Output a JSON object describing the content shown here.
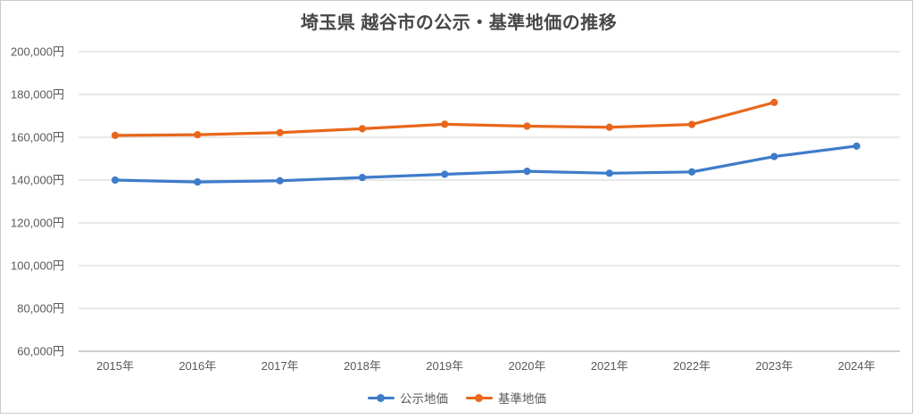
{
  "window": {
    "background": "#ffffff",
    "border_color": "#cbcbcb"
  },
  "chart": {
    "title": "埼玉県 越谷市の公示・基準地価の推移"
  },
  "chart_data": {
    "type": "line",
    "categories": [
      "2015年",
      "2016年",
      "2017年",
      "2018年",
      "2019年",
      "2020年",
      "2021年",
      "2022年",
      "2023年",
      "2024年"
    ],
    "series": [
      {
        "name": "公示地価",
        "color": "#3E7CC9",
        "values": [
          140000,
          139100,
          139700,
          141200,
          142700,
          144100,
          143200,
          143800,
          151000,
          155900
        ]
      },
      {
        "name": "基準地価",
        "color": "#E8671B",
        "values": [
          160900,
          161200,
          162200,
          164000,
          166100,
          165200,
          164700,
          166000,
          176300,
          null
        ]
      }
    ],
    "title": "埼玉県 越谷市の公示・基準地価の推移",
    "xlabel": "",
    "ylabel": "",
    "ylim": [
      60000,
      200000
    ],
    "y_tick_step": 20000,
    "y_tick_unit": "円",
    "y_tick_labels": [
      "60,000円",
      "80,000円",
      "100,000円",
      "120,000円",
      "140,000円",
      "160,000円",
      "180,000円",
      "200,000円"
    ],
    "grid": true,
    "gridline_color": "#d9d9d9",
    "axis_line_color": "#bdbdbd",
    "tick_label_color": "#595959",
    "legend_position": "bottom"
  },
  "legend": {
    "items": [
      {
        "label": "公示地価",
        "color": "#3E7CC9"
      },
      {
        "label": "基準地価",
        "color": "#E8671B"
      }
    ]
  }
}
